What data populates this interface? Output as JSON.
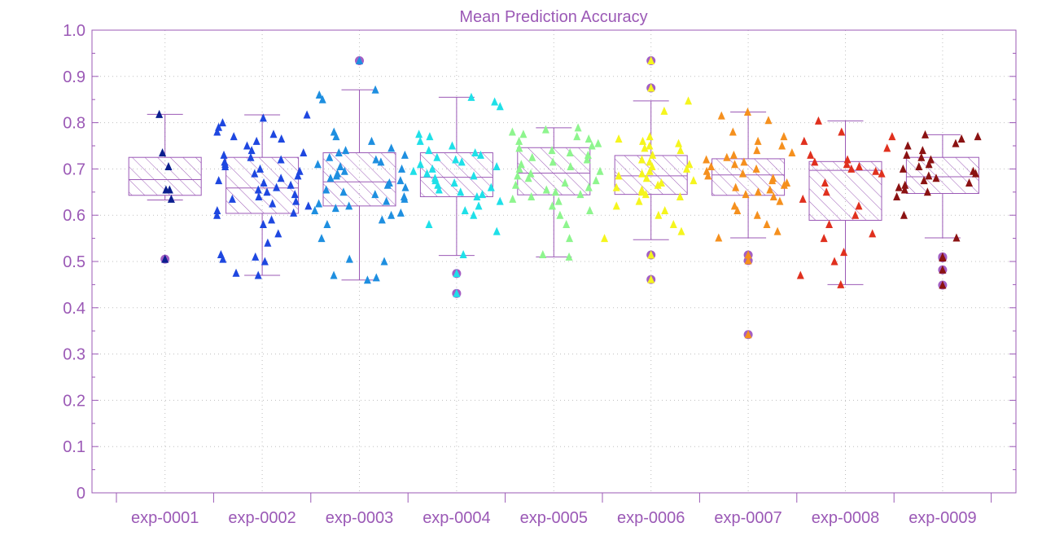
{
  "chart_data": {
    "type": "box",
    "title": "Mean Prediction Accuracy",
    "xlabel": "",
    "ylabel": "",
    "ylim": [
      0,
      1.0
    ],
    "yticks": [
      "0",
      "0.1",
      "0.2",
      "0.3",
      "0.4",
      "0.5",
      "0.6",
      "0.7",
      "0.8",
      "0.9",
      "1.0"
    ],
    "grid": true,
    "colors": {
      "axis": "#9b59b6",
      "box": "#9b59b6",
      "hatch": "#9b59b6"
    },
    "categories": [
      "exp-0001",
      "exp-0002",
      "exp-0003",
      "exp-0004",
      "exp-0005",
      "exp-0006",
      "exp-0007",
      "exp-0008",
      "exp-0009"
    ],
    "series": [
      {
        "color": "#0b1f8f",
        "box": {
          "whisker_low": 0.633,
          "q1": 0.643,
          "median": 0.677,
          "q3": 0.725,
          "whisker_high": 0.818
        },
        "outliers": [
          0.505
        ],
        "points": [
          0.818,
          0.735,
          0.705,
          0.655,
          0.655,
          0.635,
          0.505
        ]
      },
      {
        "color": "#1e47e0",
        "box": {
          "whisker_low": 0.47,
          "q1": 0.604,
          "median": 0.659,
          "q3": 0.725,
          "whisker_high": 0.817
        },
        "outliers": [],
        "points": [
          0.817,
          0.81,
          0.8,
          0.79,
          0.78,
          0.775,
          0.77,
          0.765,
          0.76,
          0.75,
          0.74,
          0.735,
          0.73,
          0.725,
          0.72,
          0.715,
          0.71,
          0.705,
          0.7,
          0.695,
          0.69,
          0.685,
          0.68,
          0.675,
          0.67,
          0.665,
          0.66,
          0.655,
          0.65,
          0.645,
          0.64,
          0.635,
          0.63,
          0.625,
          0.62,
          0.61,
          0.605,
          0.6,
          0.59,
          0.58,
          0.56,
          0.54,
          0.515,
          0.51,
          0.505,
          0.5,
          0.475,
          0.47
        ]
      },
      {
        "color": "#1e8fe0",
        "box": {
          "whisker_low": 0.46,
          "q1": 0.62,
          "median": 0.672,
          "q3": 0.735,
          "whisker_high": 0.871
        },
        "outliers": [
          0.934
        ],
        "points": [
          0.934,
          0.871,
          0.86,
          0.85,
          0.78,
          0.77,
          0.76,
          0.745,
          0.74,
          0.735,
          0.73,
          0.725,
          0.72,
          0.715,
          0.71,
          0.705,
          0.7,
          0.695,
          0.69,
          0.685,
          0.68,
          0.675,
          0.67,
          0.665,
          0.66,
          0.655,
          0.65,
          0.645,
          0.64,
          0.635,
          0.63,
          0.625,
          0.62,
          0.615,
          0.61,
          0.605,
          0.6,
          0.59,
          0.58,
          0.55,
          0.505,
          0.5,
          0.47,
          0.465,
          0.46
        ]
      },
      {
        "color": "#1fe0e8",
        "box": {
          "whisker_low": 0.513,
          "q1": 0.64,
          "median": 0.682,
          "q3": 0.735,
          "whisker_high": 0.855
        },
        "outliers": [
          0.474,
          0.431
        ],
        "points": [
          0.855,
          0.845,
          0.835,
          0.775,
          0.77,
          0.76,
          0.75,
          0.74,
          0.735,
          0.73,
          0.725,
          0.72,
          0.715,
          0.71,
          0.705,
          0.7,
          0.695,
          0.69,
          0.685,
          0.68,
          0.675,
          0.67,
          0.665,
          0.66,
          0.655,
          0.65,
          0.645,
          0.64,
          0.63,
          0.62,
          0.61,
          0.6,
          0.58,
          0.565,
          0.515,
          0.474,
          0.431
        ]
      },
      {
        "color": "#8ef58e",
        "box": {
          "whisker_low": 0.51,
          "q1": 0.644,
          "median": 0.691,
          "q3": 0.746,
          "whisker_high": 0.789
        },
        "outliers": [],
        "points": [
          0.789,
          0.785,
          0.78,
          0.775,
          0.77,
          0.765,
          0.76,
          0.755,
          0.75,
          0.745,
          0.74,
          0.735,
          0.73,
          0.725,
          0.72,
          0.715,
          0.71,
          0.705,
          0.7,
          0.695,
          0.69,
          0.685,
          0.68,
          0.675,
          0.67,
          0.665,
          0.66,
          0.655,
          0.65,
          0.645,
          0.64,
          0.635,
          0.63,
          0.62,
          0.61,
          0.6,
          0.58,
          0.55,
          0.515,
          0.51
        ]
      },
      {
        "color": "#f5f51e",
        "box": {
          "whisker_low": 0.547,
          "q1": 0.645,
          "median": 0.685,
          "q3": 0.729,
          "whisker_high": 0.847
        },
        "outliers": [
          0.934,
          0.875,
          0.514,
          0.461
        ],
        "points": [
          0.934,
          0.875,
          0.847,
          0.825,
          0.77,
          0.765,
          0.76,
          0.755,
          0.75,
          0.745,
          0.74,
          0.73,
          0.72,
          0.715,
          0.71,
          0.705,
          0.7,
          0.695,
          0.69,
          0.685,
          0.68,
          0.675,
          0.67,
          0.665,
          0.66,
          0.655,
          0.65,
          0.645,
          0.64,
          0.63,
          0.62,
          0.61,
          0.6,
          0.58,
          0.565,
          0.55,
          0.514,
          0.461
        ]
      },
      {
        "color": "#f5901e",
        "box": {
          "whisker_low": 0.551,
          "q1": 0.643,
          "median": 0.687,
          "q3": 0.722,
          "whisker_high": 0.823
        },
        "outliers": [
          0.514,
          0.502,
          0.342
        ],
        "points": [
          0.823,
          0.815,
          0.805,
          0.78,
          0.77,
          0.76,
          0.75,
          0.74,
          0.735,
          0.73,
          0.725,
          0.72,
          0.715,
          0.71,
          0.705,
          0.7,
          0.695,
          0.69,
          0.685,
          0.68,
          0.675,
          0.67,
          0.665,
          0.66,
          0.655,
          0.65,
          0.645,
          0.64,
          0.63,
          0.62,
          0.61,
          0.6,
          0.58,
          0.565,
          0.551,
          0.514,
          0.502,
          0.342
        ]
      },
      {
        "color": "#e0301e",
        "box": {
          "whisker_low": 0.45,
          "q1": 0.589,
          "median": 0.697,
          "q3": 0.716,
          "whisker_high": 0.804
        },
        "outliers": [],
        "points": [
          0.804,
          0.78,
          0.77,
          0.76,
          0.745,
          0.73,
          0.72,
          0.715,
          0.71,
          0.705,
          0.7,
          0.695,
          0.69,
          0.67,
          0.65,
          0.635,
          0.62,
          0.6,
          0.58,
          0.56,
          0.55,
          0.52,
          0.5,
          0.47,
          0.45
        ]
      },
      {
        "color": "#8b1212",
        "box": {
          "whisker_low": 0.551,
          "q1": 0.647,
          "median": 0.683,
          "q3": 0.725,
          "whisker_high": 0.774
        },
        "outliers": [
          0.51,
          0.508,
          0.482,
          0.449
        ],
        "points": [
          0.774,
          0.77,
          0.765,
          0.755,
          0.75,
          0.74,
          0.73,
          0.725,
          0.72,
          0.71,
          0.705,
          0.7,
          0.695,
          0.69,
          0.685,
          0.68,
          0.675,
          0.67,
          0.665,
          0.66,
          0.655,
          0.65,
          0.64,
          0.6,
          0.551,
          0.51,
          0.508,
          0.482,
          0.449
        ]
      }
    ]
  }
}
